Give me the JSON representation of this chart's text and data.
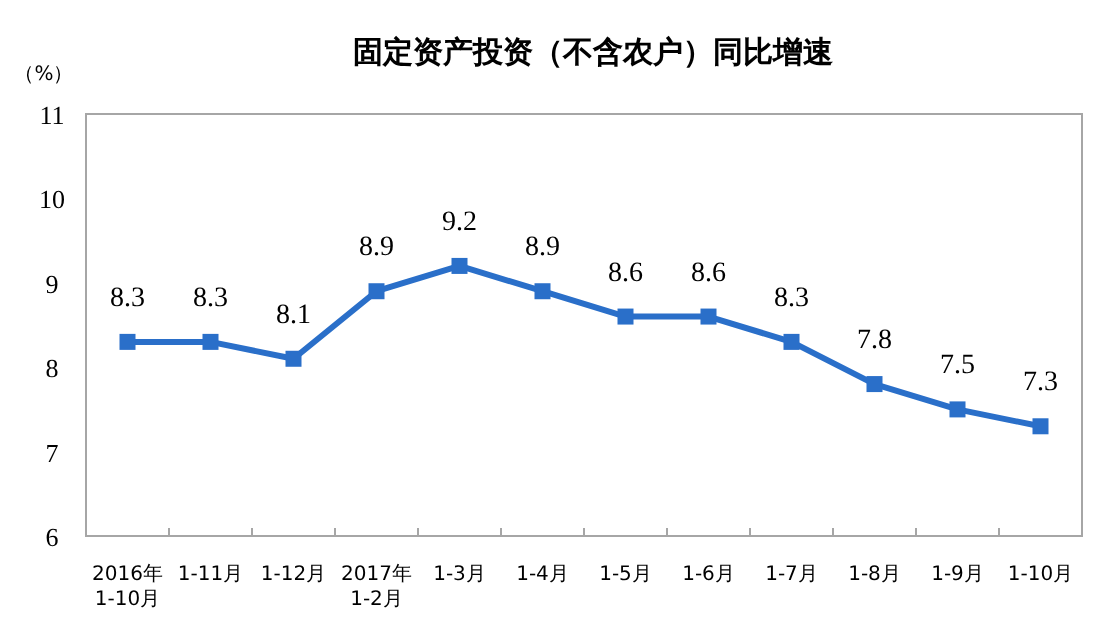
{
  "chart_data": {
    "type": "line",
    "title": "固定资产投资（不含农户）同比增速",
    "ylabel": "（%）",
    "categories": [
      "2016年\n1-10月",
      "1-11月",
      "1-12月",
      "2017年\n1-2月",
      "1-3月",
      "1-4月",
      "1-5月",
      "1-6月",
      "1-7月",
      "1-8月",
      "1-9月",
      "1-10月"
    ],
    "series": [
      {
        "color": "#2a6fc9",
        "values": [
          8.3,
          8.3,
          8.1,
          8.9,
          9.2,
          8.9,
          8.6,
          8.6,
          8.3,
          7.8,
          7.5,
          7.3
        ]
      }
    ],
    "ylim": [
      6,
      11
    ],
    "yticks": [
      6,
      7,
      8,
      9,
      10,
      11
    ],
    "marker": "square",
    "data_labels": true
  }
}
